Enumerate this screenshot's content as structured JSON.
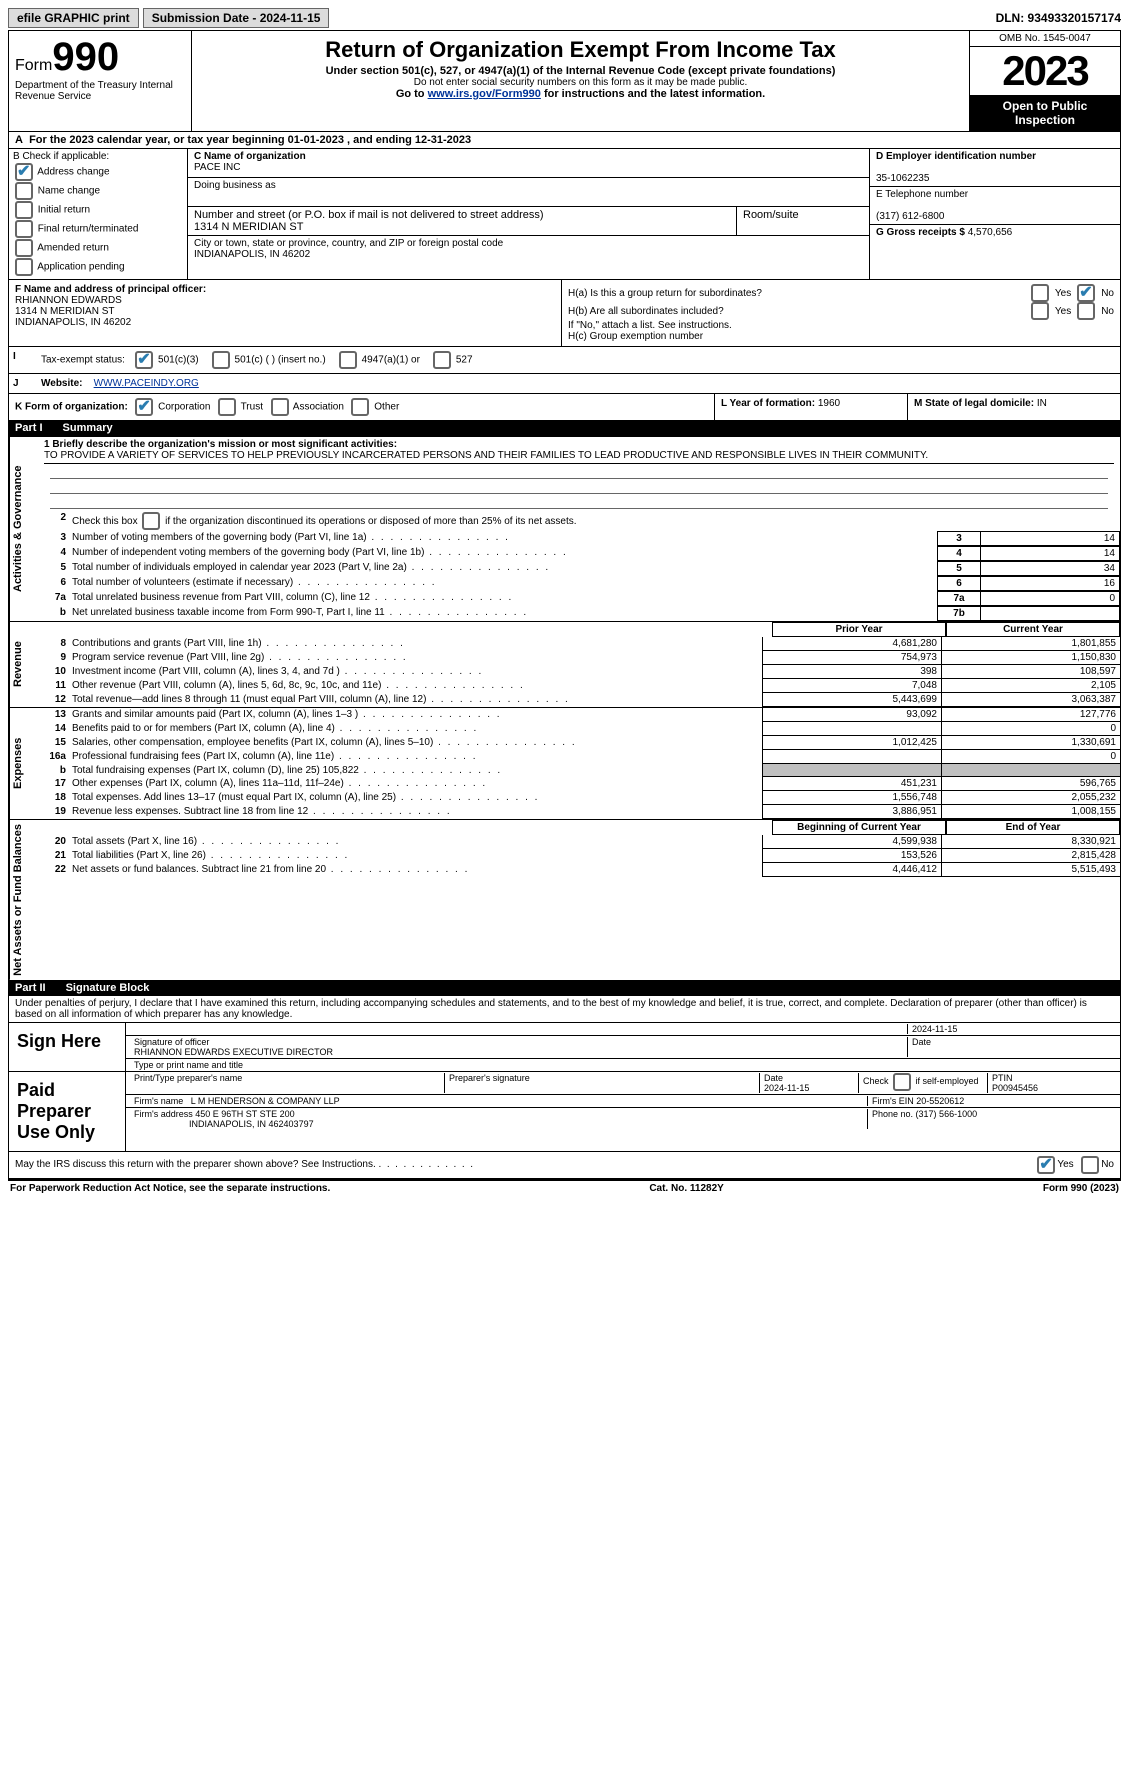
{
  "topbar": {
    "efile": "efile GRAPHIC print",
    "submission_label": "Submission Date - 2024-11-15",
    "dln_label": "DLN: 93493320157174"
  },
  "header": {
    "form_label": "Form",
    "form_number": "990",
    "dept": "Department of the Treasury Internal Revenue Service",
    "title": "Return of Organization Exempt From Income Tax",
    "line1": "Under section 501(c), 527, or 4947(a)(1) of the Internal Revenue Code (except private foundations)",
    "line2": "Do not enter social security numbers on this form as it may be made public.",
    "line3_pre": "Go to ",
    "line3_link": "www.irs.gov/Form990",
    "line3_post": " for instructions and the latest information.",
    "omb": "OMB No. 1545-0047",
    "year": "2023",
    "open": "Open to Public Inspection"
  },
  "cal_year": {
    "pre": "For the 2023 calendar year, or tax year beginning ",
    "begin": "01-01-2023",
    "mid": " , and ending ",
    "end": "12-31-2023"
  },
  "section_b": {
    "label": "B Check if applicable:",
    "items": [
      "Address change",
      "Name change",
      "Initial return",
      "Final return/terminated",
      "Amended return",
      "Application pending"
    ],
    "checked": [
      true,
      false,
      false,
      false,
      false,
      false
    ]
  },
  "section_c": {
    "name_label": "C Name of organization",
    "name": "PACE INC",
    "dba_label": "Doing business as",
    "street_label": "Number and street (or P.O. box if mail is not delivered to street address)",
    "street": "1314 N MERIDIAN ST",
    "room_label": "Room/suite",
    "city_label": "City or town, state or province, country, and ZIP or foreign postal code",
    "city": "INDIANAPOLIS, IN  46202"
  },
  "section_d": {
    "ein_label": "D Employer identification number",
    "ein": "35-1062235",
    "phone_label": "E Telephone number",
    "phone": "(317) 612-6800",
    "gross_label": "G Gross receipts $ ",
    "gross": "4,570,656"
  },
  "section_f": {
    "label": "F  Name and address of principal officer:",
    "name": "RHIANNON EDWARDS",
    "street": "1314 N MERIDIAN ST",
    "city": "INDIANAPOLIS, IN  46202"
  },
  "section_h": {
    "ha_label": "H(a)  Is this a group return for subordinates?",
    "hb_label": "H(b)  Are all subordinates included?",
    "hb_note": "If \"No,\" attach a list. See instructions.",
    "hc_label": "H(c)  Group exemption number  ",
    "yes": "Yes",
    "no": "No"
  },
  "section_i": {
    "label": "Tax-exempt status:",
    "opts": [
      "501(c)(3)",
      "501(c) (  ) (insert no.)",
      "4947(a)(1) or",
      "527"
    ]
  },
  "section_j": {
    "label": "Website: ",
    "value": "WWW.PACEINDY.ORG"
  },
  "section_k": {
    "label": "K Form of organization:",
    "opts": [
      "Corporation",
      "Trust",
      "Association",
      "Other"
    ],
    "l_label": "L Year of formation: ",
    "l_val": "1960",
    "m_label": "M State of legal domicile: ",
    "m_val": "IN"
  },
  "part1": {
    "label": "Part I",
    "title": "Summary"
  },
  "summary": {
    "side_labels": [
      "Activities & Governance",
      "Revenue",
      "Expenses",
      "Net Assets or Fund Balances"
    ],
    "q1_label": "1   Briefly describe the organization's mission or most significant activities:",
    "q1_text": "TO PROVIDE A VARIETY OF SERVICES TO HELP PREVIOUSLY INCARCERATED PERSONS AND THEIR FAMILIES TO LEAD PRODUCTIVE AND RESPONSIBLE LIVES IN THEIR COMMUNITY.",
    "q2": "Check this box          if the organization discontinued its operations or disposed of more than 25% of its net assets.",
    "lines_gov": [
      {
        "n": "3",
        "t": "Number of voting members of the governing body (Part VI, line 1a)",
        "box": "3",
        "v": "14"
      },
      {
        "n": "4",
        "t": "Number of independent voting members of the governing body (Part VI, line 1b)",
        "box": "4",
        "v": "14"
      },
      {
        "n": "5",
        "t": "Total number of individuals employed in calendar year 2023 (Part V, line 2a)",
        "box": "5",
        "v": "34"
      },
      {
        "n": "6",
        "t": "Total number of volunteers (estimate if necessary)",
        "box": "6",
        "v": "16"
      },
      {
        "n": "7a",
        "t": "Total unrelated business revenue from Part VIII, column (C), line 12",
        "box": "7a",
        "v": "0"
      },
      {
        "n": "b",
        "t": "Net unrelated business taxable income from Form 990-T, Part I, line 11",
        "box": "7b",
        "v": ""
      }
    ],
    "col_headers": {
      "prior": "Prior Year",
      "current": "Current Year",
      "beg": "Beginning of Current Year",
      "end": "End of Year"
    },
    "lines_rev": [
      {
        "n": "8",
        "t": "Contributions and grants (Part VIII, line 1h)",
        "p": "4,681,280",
        "c": "1,801,855"
      },
      {
        "n": "9",
        "t": "Program service revenue (Part VIII, line 2g)",
        "p": "754,973",
        "c": "1,150,830"
      },
      {
        "n": "10",
        "t": "Investment income (Part VIII, column (A), lines 3, 4, and 7d )",
        "p": "398",
        "c": "108,597"
      },
      {
        "n": "11",
        "t": "Other revenue (Part VIII, column (A), lines 5, 6d, 8c, 9c, 10c, and 11e)",
        "p": "7,048",
        "c": "2,105"
      },
      {
        "n": "12",
        "t": "Total revenue—add lines 8 through 11 (must equal Part VIII, column (A), line 12)",
        "p": "5,443,699",
        "c": "3,063,387"
      }
    ],
    "lines_exp": [
      {
        "n": "13",
        "t": "Grants and similar amounts paid (Part IX, column (A), lines 1–3 )",
        "p": "93,092",
        "c": "127,776"
      },
      {
        "n": "14",
        "t": "Benefits paid to or for members (Part IX, column (A), line 4)",
        "p": "",
        "c": "0"
      },
      {
        "n": "15",
        "t": "Salaries, other compensation, employee benefits (Part IX, column (A), lines 5–10)",
        "p": "1,012,425",
        "c": "1,330,691"
      },
      {
        "n": "16a",
        "t": "Professional fundraising fees (Part IX, column (A), line 11e)",
        "p": "",
        "c": "0"
      },
      {
        "n": "b",
        "t": "Total fundraising expenses (Part IX, column (D), line 25) 105,822",
        "p": "gray",
        "c": "gray"
      },
      {
        "n": "17",
        "t": "Other expenses (Part IX, column (A), lines 11a–11d, 11f–24e)",
        "p": "451,231",
        "c": "596,765"
      },
      {
        "n": "18",
        "t": "Total expenses. Add lines 13–17 (must equal Part IX, column (A), line 25)",
        "p": "1,556,748",
        "c": "2,055,232"
      },
      {
        "n": "19",
        "t": "Revenue less expenses. Subtract line 18 from line 12",
        "p": "3,886,951",
        "c": "1,008,155"
      }
    ],
    "lines_net": [
      {
        "n": "20",
        "t": "Total assets (Part X, line 16)",
        "p": "4,599,938",
        "c": "8,330,921"
      },
      {
        "n": "21",
        "t": "Total liabilities (Part X, line 26)",
        "p": "153,526",
        "c": "2,815,428"
      },
      {
        "n": "22",
        "t": "Net assets or fund balances. Subtract line 21 from line 20",
        "p": "4,446,412",
        "c": "5,515,493"
      }
    ]
  },
  "part2": {
    "label": "Part II",
    "title": "Signature Block"
  },
  "sig": {
    "perjury": "Under penalties of perjury, I declare that I have examined this return, including accompanying schedules and statements, and to the best of my knowledge and belief, it is true, correct, and complete. Declaration of preparer (other than officer) is based on all information of which preparer has any knowledge.",
    "sign_here": "Sign Here",
    "sig_officer": "Signature of officer",
    "date": "Date",
    "date_val": "2024-11-15",
    "officer_name": "RHIANNON EDWARDS  EXECUTIVE DIRECTOR",
    "type_name": "Type or print name and title",
    "paid": "Paid Preparer Use Only",
    "print_name_label": "Print/Type preparer's name",
    "prep_sig_label": "Preparer's signature",
    "prep_date": "2024-11-15",
    "check_self": "Check         if self-employed",
    "ptin_label": "PTIN",
    "ptin": "P00945456",
    "firm_name_label": "Firm's name  ",
    "firm_name": "L M HENDERSON & COMPANY LLP",
    "firm_ein_label": "Firm's EIN  ",
    "firm_ein": "20-5520612",
    "firm_addr_label": "Firm's address ",
    "firm_addr1": "450 E 96TH ST STE 200",
    "firm_addr2": "INDIANAPOLIS, IN  462403797",
    "phone_label": "Phone no. ",
    "phone": "(317) 566-1000",
    "discuss": "May the IRS discuss this return with the preparer shown above? See Instructions."
  },
  "footer": {
    "left": "For Paperwork Reduction Act Notice, see the separate instructions.",
    "mid": "Cat. No. 11282Y",
    "right": "Form 990 (2023)"
  }
}
